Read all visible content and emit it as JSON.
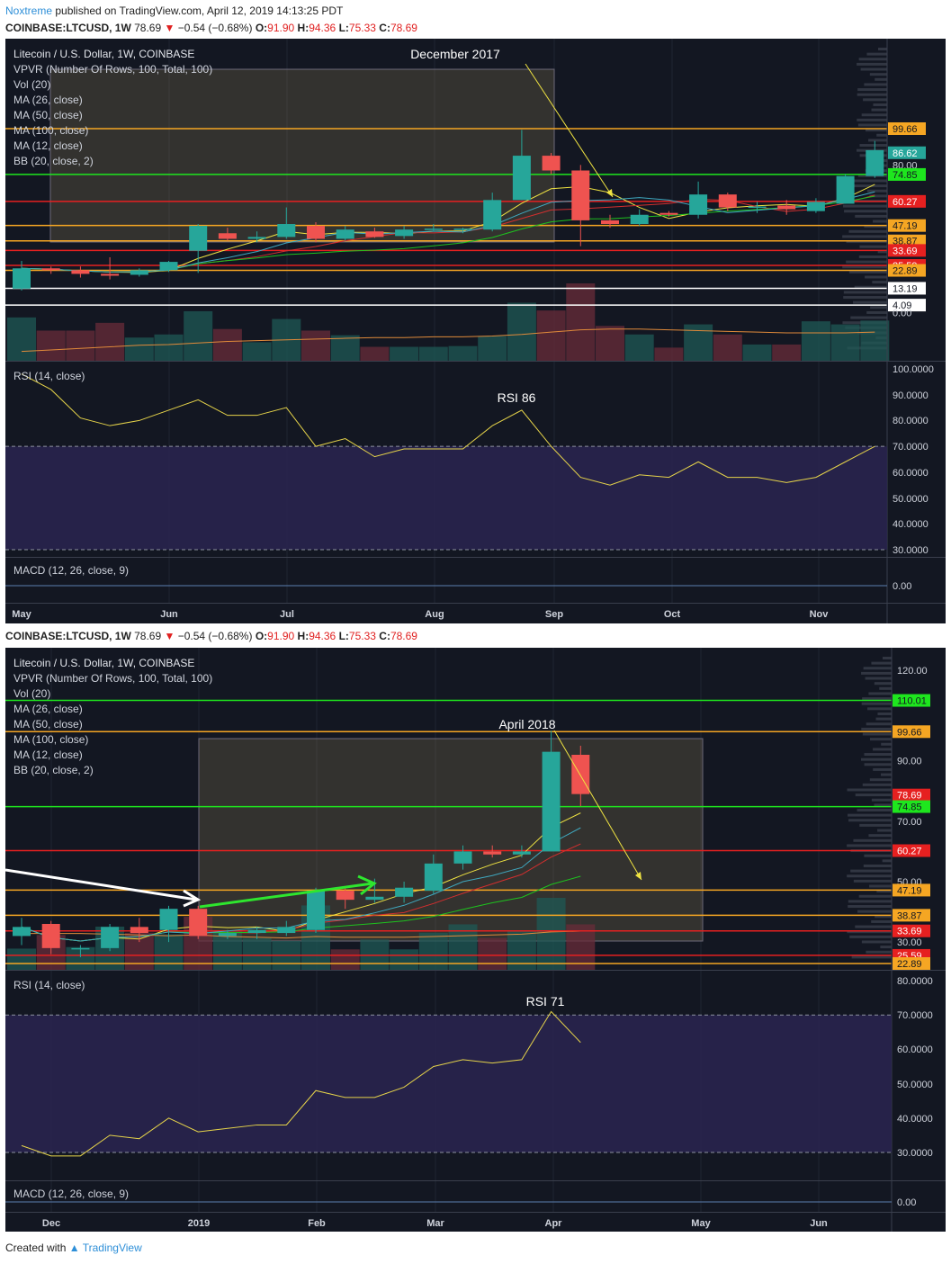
{
  "header": {
    "author": "Noxtreme",
    "published_text": "published on TradingView.com, April 12, 2019 14:13:25 PDT",
    "symbol_line": {
      "symbol": "COINBASE:LTCUSD, 1W",
      "last": "78.69",
      "change": "−0.54 (−0.68%)",
      "open_label": "O:",
      "open": "91.90",
      "high_label": "H:",
      "high": "94.36",
      "low_label": "L:",
      "low": "75.33",
      "close_label": "C:",
      "close": "78.69"
    }
  },
  "footer": {
    "created_with": "Created with",
    "brand": "TradingView"
  },
  "colors": {
    "background": "#131722",
    "up": "#26a69a",
    "down": "#ef5350",
    "ma_fast": "#f0e442",
    "ma_mid": "#d32f2f",
    "ma_slow": "#1ec31e",
    "ma_long": "#3fa9c0",
    "rsi": "#e6d44a",
    "rsi_band": "#2a2550"
  },
  "chart_data": [
    {
      "type": "candlestick",
      "title": "Litecoin / U.S. Dollar, 1W, COINBASE",
      "annotation": "December 2017",
      "indicators": [
        "VPVR (Number Of Rows, 100, Total, 100)",
        "Vol (20)",
        "MA (26, close)",
        "MA (50, close)",
        "MA (100, close)",
        "MA (12, close)",
        "BB (20, close, 2)"
      ],
      "x_labels": [
        "May",
        "Jun",
        "Jul",
        "Aug",
        "Sep",
        "Oct",
        "Nov"
      ],
      "price_axis": {
        "ticks": [
          {
            "v": 99.66,
            "label": "99.66",
            "color": "#f5a623",
            "text": "#131722"
          },
          {
            "v": 86.62,
            "label": "86.62",
            "color": "#26a69a",
            "text": "#ffffff"
          },
          {
            "v": 80.0,
            "label": "80.00",
            "color": "",
            "text": "#cfd3dc"
          },
          {
            "v": 74.85,
            "label": "74.85",
            "color": "#1ee61e",
            "text": "#131722"
          },
          {
            "v": 60.27,
            "label": "60.27",
            "color": "#e62020",
            "text": "#ffffff"
          },
          {
            "v": 47.19,
            "label": "47.19",
            "color": "#f5a623",
            "text": "#131722"
          },
          {
            "v": 38.87,
            "label": "38.87",
            "color": "#f5a623",
            "text": "#131722"
          },
          {
            "v": 33.69,
            "label": "33.69",
            "color": "#e62020",
            "text": "#ffffff"
          },
          {
            "v": 25.59,
            "label": "25.59",
            "color": "#e62020",
            "text": "#ffffff"
          },
          {
            "v": 22.89,
            "label": "22.89",
            "color": "#f5a623",
            "text": "#131722"
          },
          {
            "v": 13.19,
            "label": "13.19",
            "color": "#ffffff",
            "text": "#131722"
          },
          {
            "v": 4.09,
            "label": "4.09",
            "color": "#ffffff",
            "text": "#131722"
          },
          {
            "v": 0.0,
            "label": "0.00",
            "color": "",
            "text": "#cfd3dc"
          }
        ]
      },
      "levels": [
        {
          "v": 99.66,
          "color": "#f5a623"
        },
        {
          "v": 74.85,
          "color": "#1ee61e"
        },
        {
          "v": 60.27,
          "color": "#e62020"
        },
        {
          "v": 47.19,
          "color": "#f5a623"
        },
        {
          "v": 38.87,
          "color": "#f5a623"
        },
        {
          "v": 33.69,
          "color": "#e62020"
        },
        {
          "v": 25.59,
          "color": "#e62020"
        },
        {
          "v": 22.89,
          "color": "#f5a623"
        },
        {
          "v": 13.19,
          "color": "#ffffff"
        },
        {
          "v": 4.09,
          "color": "#ffffff"
        }
      ],
      "candles": [
        {
          "o": 13.0,
          "h": 28.0,
          "l": 12.0,
          "c": 24.0
        },
        {
          "o": 24.0,
          "h": 25.0,
          "l": 21.0,
          "c": 23.0
        },
        {
          "o": 23.0,
          "h": 25.0,
          "l": 19.0,
          "c": 21.0
        },
        {
          "o": 21.0,
          "h": 30.0,
          "l": 18.0,
          "c": 20.0
        },
        {
          "o": 20.5,
          "h": 24.0,
          "l": 19.5,
          "c": 23.0
        },
        {
          "o": 23.0,
          "h": 28.0,
          "l": 22.0,
          "c": 27.5
        },
        {
          "o": 33.5,
          "h": 48.0,
          "l": 21.5,
          "c": 47.0
        },
        {
          "o": 43.0,
          "h": 46.0,
          "l": 39.0,
          "c": 40.0
        },
        {
          "o": 40.0,
          "h": 44.0,
          "l": 38.0,
          "c": 41.0
        },
        {
          "o": 41.0,
          "h": 57.0,
          "l": 40.0,
          "c": 48.0
        },
        {
          "o": 47.0,
          "h": 49.0,
          "l": 38.0,
          "c": 40.0
        },
        {
          "o": 40.0,
          "h": 47.0,
          "l": 39.0,
          "c": 45.0
        },
        {
          "o": 44.0,
          "h": 46.0,
          "l": 40.5,
          "c": 41.0
        },
        {
          "o": 41.5,
          "h": 47.0,
          "l": 40.0,
          "c": 45.0
        },
        {
          "o": 45.0,
          "h": 48.0,
          "l": 44.0,
          "c": 45.5
        },
        {
          "o": 45.0,
          "h": 46.0,
          "l": 43.0,
          "c": 45.5
        },
        {
          "o": 45.0,
          "h": 65.0,
          "l": 44.0,
          "c": 61.0
        },
        {
          "o": 61.0,
          "h": 99.0,
          "l": 61.0,
          "c": 85.0
        },
        {
          "o": 85.0,
          "h": 86.5,
          "l": 75.0,
          "c": 77.0
        },
        {
          "o": 77.0,
          "h": 80.0,
          "l": 36.0,
          "c": 50.0
        },
        {
          "o": 50.0,
          "h": 53.0,
          "l": 46.0,
          "c": 48.0
        },
        {
          "o": 48.0,
          "h": 56.0,
          "l": 47.0,
          "c": 53.0
        },
        {
          "o": 54.0,
          "h": 55.0,
          "l": 52.0,
          "c": 53.0
        },
        {
          "o": 53.0,
          "h": 71.0,
          "l": 51.0,
          "c": 64.0
        },
        {
          "o": 64.0,
          "h": 65.0,
          "l": 55.0,
          "c": 57.0
        },
        {
          "o": 57.0,
          "h": 60.0,
          "l": 54.0,
          "c": 57.5
        },
        {
          "o": 58.0,
          "h": 61.0,
          "l": 53.0,
          "c": 56.0
        },
        {
          "o": 55.0,
          "h": 62.0,
          "l": 54.0,
          "c": 60.0
        },
        {
          "o": 59.0,
          "h": 75.0,
          "l": 59.0,
          "c": 74.0
        },
        {
          "o": 74.0,
          "h": 93.0,
          "l": 73.0,
          "c": 88.0
        }
      ],
      "volume_relative": [
        0.56,
        0.39,
        0.39,
        0.49,
        0.3,
        0.34,
        0.64,
        0.41,
        0.24,
        0.54,
        0.39,
        0.33,
        0.18,
        0.18,
        0.18,
        0.19,
        0.32,
        0.75,
        0.65,
        1.0,
        0.45,
        0.34,
        0.17,
        0.47,
        0.34,
        0.21,
        0.21,
        0.51,
        0.47,
        0.52
      ],
      "volume_ma_relative": [
        0.12,
        0.14,
        0.16,
        0.18,
        0.2,
        0.21,
        0.23,
        0.25,
        0.26,
        0.27,
        0.28,
        0.29,
        0.3,
        0.3,
        0.31,
        0.31,
        0.32,
        0.34,
        0.37,
        0.4,
        0.41,
        0.41,
        0.4,
        0.39,
        0.38,
        0.37,
        0.36,
        0.36,
        0.36,
        0.37
      ],
      "rsi": {
        "title": "RSI (14, close)",
        "annotation": "RSI 86",
        "overbought": 70,
        "oversold": 30,
        "ticks": [
          "100.0000",
          "90.0000",
          "80.0000",
          "70.0000",
          "60.0000",
          "50.0000",
          "40.0000",
          "30.0000"
        ],
        "values": [
          98,
          92,
          81,
          78,
          80,
          84,
          88,
          82,
          82,
          85,
          70,
          73,
          66,
          69,
          69,
          69,
          78,
          84,
          70,
          58,
          55,
          59,
          58,
          64,
          58,
          58,
          56,
          58,
          64,
          70
        ]
      },
      "macd": {
        "title": "MACD (12, 26, close, 9)",
        "tick": "0.00"
      }
    },
    {
      "type": "candlestick",
      "title": "Litecoin / U.S. Dollar, 1W, COINBASE",
      "annotation": "April 2018",
      "indicators": [
        "VPVR (Number Of Rows, 100, Total, 100)",
        "Vol (20)",
        "MA (26, close)",
        "MA (50, close)",
        "MA (100, close)",
        "MA (12, close)",
        "BB (20, close, 2)"
      ],
      "x_labels": [
        "Dec",
        "2019",
        "Feb",
        "Mar",
        "Apr",
        "May",
        "Jun"
      ],
      "price_axis": {
        "ticks": [
          {
            "v": 120.0,
            "label": "120.00",
            "color": "",
            "text": "#cfd3dc"
          },
          {
            "v": 110.01,
            "label": "110.01",
            "color": "#1ee61e",
            "text": "#131722"
          },
          {
            "v": 99.66,
            "label": "99.66",
            "color": "#f5a623",
            "text": "#131722"
          },
          {
            "v": 90.0,
            "label": "90.00",
            "color": "",
            "text": "#cfd3dc"
          },
          {
            "v": 78.69,
            "label": "78.69",
            "color": "#e62020",
            "text": "#ffffff"
          },
          {
            "v": 74.85,
            "label": "74.85",
            "color": "#1ee61e",
            "text": "#131722"
          },
          {
            "v": 70.0,
            "label": "70.00",
            "color": "",
            "text": "#cfd3dc"
          },
          {
            "v": 60.27,
            "label": "60.27",
            "color": "#e62020",
            "text": "#ffffff"
          },
          {
            "v": 50.0,
            "label": "50.00",
            "color": "",
            "text": "#cfd3dc"
          },
          {
            "v": 47.19,
            "label": "47.19",
            "color": "#f5a623",
            "text": "#131722"
          },
          {
            "v": 38.87,
            "label": "38.87",
            "color": "#f5a623",
            "text": "#131722"
          },
          {
            "v": 33.69,
            "label": "33.69",
            "color": "#e62020",
            "text": "#ffffff"
          },
          {
            "v": 30.0,
            "label": "30.00",
            "color": "",
            "text": "#cfd3dc"
          },
          {
            "v": 25.59,
            "label": "25.59",
            "color": "#e62020",
            "text": "#ffffff"
          },
          {
            "v": 22.89,
            "label": "22.89",
            "color": "#f5a623",
            "text": "#131722"
          }
        ]
      },
      "levels": [
        {
          "v": 110.01,
          "color": "#1ee61e"
        },
        {
          "v": 99.66,
          "color": "#f5a623"
        },
        {
          "v": 74.85,
          "color": "#1ee61e"
        },
        {
          "v": 60.27,
          "color": "#e62020"
        },
        {
          "v": 47.19,
          "color": "#f5a623"
        },
        {
          "v": 38.87,
          "color": "#f5a623"
        },
        {
          "v": 33.69,
          "color": "#e62020"
        },
        {
          "v": 25.59,
          "color": "#e62020"
        },
        {
          "v": 22.89,
          "color": "#f5a623"
        }
      ],
      "candles": [
        {
          "o": 32.0,
          "h": 38.0,
          "l": 29.0,
          "c": 35.0
        },
        {
          "o": 36.0,
          "h": 37.0,
          "l": 26.0,
          "c": 28.0
        },
        {
          "o": 28.0,
          "h": 29.0,
          "l": 25.0,
          "c": 28.0
        },
        {
          "o": 28.0,
          "h": 36.0,
          "l": 27.0,
          "c": 35.0
        },
        {
          "o": 35.0,
          "h": 38.0,
          "l": 30.0,
          "c": 33.0
        },
        {
          "o": 34.0,
          "h": 42.0,
          "l": 30.0,
          "c": 41.0
        },
        {
          "o": 41.0,
          "h": 42.0,
          "l": 31.0,
          "c": 32.0
        },
        {
          "o": 32.0,
          "h": 34.0,
          "l": 31.0,
          "c": 33.0
        },
        {
          "o": 33.0,
          "h": 35.0,
          "l": 31.0,
          "c": 34.0
        },
        {
          "o": 33.0,
          "h": 37.0,
          "l": 32.0,
          "c": 35.0
        },
        {
          "o": 34.0,
          "h": 48.0,
          "l": 33.0,
          "c": 47.0
        },
        {
          "o": 47.0,
          "h": 48.0,
          "l": 41.0,
          "c": 44.0
        },
        {
          "o": 44.0,
          "h": 51.0,
          "l": 43.0,
          "c": 45.0
        },
        {
          "o": 45.0,
          "h": 50.0,
          "l": 43.0,
          "c": 48.0
        },
        {
          "o": 47.0,
          "h": 59.0,
          "l": 46.0,
          "c": 56.0
        },
        {
          "o": 56.0,
          "h": 62.0,
          "l": 54.0,
          "c": 60.0
        },
        {
          "o": 60.0,
          "h": 62.0,
          "l": 58.0,
          "c": 59.0
        },
        {
          "o": 59.0,
          "h": 62.0,
          "l": 58.0,
          "c": 60.0
        },
        {
          "o": 60.0,
          "h": 100.0,
          "l": 60.0,
          "c": 93.0
        },
        {
          "o": 92.0,
          "h": 95.0,
          "l": 75.0,
          "c": 79.0
        }
      ],
      "volume_relative": [
        0.28,
        0.46,
        0.3,
        0.57,
        0.49,
        0.47,
        0.7,
        0.52,
        0.42,
        0.38,
        0.85,
        0.27,
        0.4,
        0.27,
        0.49,
        0.6,
        0.42,
        0.52,
        0.95,
        0.6
      ],
      "volume_ma_relative": [
        0.48,
        0.48,
        0.48,
        0.47,
        0.46,
        0.45,
        0.46,
        0.44,
        0.43,
        0.42,
        0.44,
        0.43,
        0.43,
        0.43,
        0.44,
        0.45,
        0.46,
        0.47,
        0.5,
        0.51
      ],
      "rsi": {
        "title": "RSI (14, close)",
        "annotation": "RSI 71",
        "overbought": 70,
        "oversold": 30,
        "ticks": [
          "80.0000",
          "70.0000",
          "60.0000",
          "50.0000",
          "40.0000",
          "30.0000"
        ],
        "values": [
          32,
          29,
          29,
          35,
          34,
          40,
          36,
          37,
          38,
          38,
          48,
          46,
          46,
          49,
          55,
          57,
          56,
          57,
          71,
          62
        ]
      },
      "macd": {
        "title": "MACD (12, 26, close, 9)",
        "tick": "0.00"
      }
    }
  ]
}
